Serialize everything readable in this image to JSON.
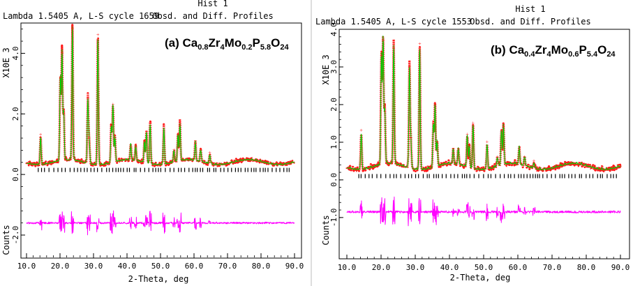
{
  "chart_data": [
    {
      "type": "line",
      "panel_id": "a",
      "header_left": "Lambda 1.5405 A, L-S cycle 1659",
      "header_right_line1": "Hist  1",
      "header_right_line2": "Obsd. and Diff. Profiles",
      "label": {
        "prefix": "(a) ",
        "parts": [
          [
            "Ca",
            ""
          ],
          [
            "0.8",
            "sub"
          ],
          [
            "Zr",
            ""
          ],
          [
            "4",
            "sub"
          ],
          [
            "Mo",
            ""
          ],
          [
            "0.2",
            "sub"
          ],
          [
            "P",
            ""
          ],
          [
            "5.8",
            "sub"
          ],
          [
            "O",
            ""
          ],
          [
            "24",
            "sub"
          ]
        ]
      },
      "ylabel_top": "X10E  3",
      "ylabel_bottom": "Counts",
      "xlabel": "2-Theta, deg",
      "xlim": [
        10,
        90
      ],
      "ylim": [
        -2.3,
        5.0
      ],
      "x_ticks": [
        10.0,
        20.0,
        30.0,
        40.0,
        50.0,
        60.0,
        70.0,
        80.0,
        90.0
      ],
      "x_tick_labels": [
        "10.0",
        "20.0",
        "30.0",
        "40.0",
        "50.0",
        "60.0",
        "70.0",
        "80.0",
        "90.0"
      ],
      "y_ticks": [
        -2.0,
        0.0,
        2.0,
        4.0
      ],
      "y_tick_labels": [
        "-2.0",
        "0.0",
        "2.0",
        "4.0"
      ],
      "background_level": 0.4,
      "tick_marks_y": 0.15,
      "difference_offset": -1.6,
      "peaks": [
        [
          14.2,
          1.3
        ],
        [
          20.1,
          3.2
        ],
        [
          20.6,
          4.0
        ],
        [
          21.1,
          2.0
        ],
        [
          23.7,
          4.8
        ],
        [
          28.3,
          2.5
        ],
        [
          28.7,
          1.2
        ],
        [
          31.3,
          4.6
        ],
        [
          35.3,
          1.6
        ],
        [
          35.8,
          2.3
        ],
        [
          36.4,
          1.2
        ],
        [
          41.1,
          0.9
        ],
        [
          42.6,
          0.9
        ],
        [
          45.2,
          1.1
        ],
        [
          45.8,
          1.4
        ],
        [
          46.9,
          1.7
        ],
        [
          51.0,
          1.6
        ],
        [
          54.0,
          0.8
        ],
        [
          55.2,
          1.3
        ],
        [
          55.8,
          1.6
        ],
        [
          60.4,
          1.0
        ],
        [
          62.0,
          0.8
        ],
        [
          64.7,
          0.7
        ]
      ],
      "colors": {
        "observed": "#ff1a1a",
        "calculated": "#00d000",
        "difference": "#ff00ff",
        "ticks": "#000000"
      }
    },
    {
      "type": "line",
      "panel_id": "b",
      "header_left": "Lambda 1.5405 A, L-S cycle 1553",
      "header_right_line1": "Hist  1",
      "header_right_line2": "Obsd. and Diff. Profiles",
      "label": {
        "prefix": "(b) ",
        "parts": [
          [
            "Ca",
            ""
          ],
          [
            "0.4",
            "sub"
          ],
          [
            "Zr",
            ""
          ],
          [
            "4",
            "sub"
          ],
          [
            "Mo",
            ""
          ],
          [
            "0.6",
            "sub"
          ],
          [
            "P",
            ""
          ],
          [
            "5.4",
            "sub"
          ],
          [
            "O",
            ""
          ],
          [
            "24",
            "sub"
          ]
        ]
      },
      "ylabel_top": "X10E  3",
      "ylabel_bottom": "Counts",
      "xlabel": "2-Theta, deg",
      "xlim": [
        10,
        90
      ],
      "ylim": [
        -1.8,
        4.0
      ],
      "x_ticks": [
        10.0,
        20.0,
        30.0,
        40.0,
        50.0,
        60.0,
        70.0,
        80.0,
        90.0
      ],
      "x_tick_labels": [
        "10.0",
        "20.0",
        "30.0",
        "40.0",
        "50.0",
        "60.0",
        "70.0",
        "80.0",
        "90.0"
      ],
      "y_ticks": [
        -1.0,
        0.0,
        1.0,
        2.0,
        3.0,
        4.0
      ],
      "y_tick_labels": [
        "-1.0",
        "0.0",
        "1.0",
        "2.0",
        "3.0",
        "4.0"
      ],
      "background_level": 0.35,
      "tick_marks_y": 0.1,
      "difference_offset": -0.85,
      "peaks": [
        [
          14.2,
          1.3
        ],
        [
          20.1,
          3.3
        ],
        [
          20.6,
          3.7
        ],
        [
          21.1,
          1.8
        ],
        [
          23.7,
          3.5
        ],
        [
          28.3,
          3.0
        ],
        [
          28.7,
          1.1
        ],
        [
          31.3,
          3.6
        ],
        [
          35.3,
          1.5
        ],
        [
          35.8,
          2.0
        ],
        [
          36.4,
          1.0
        ],
        [
          41.1,
          0.7
        ],
        [
          42.6,
          0.8
        ],
        [
          45.2,
          1.2
        ],
        [
          45.8,
          0.9
        ],
        [
          46.9,
          1.5
        ],
        [
          51.0,
          1.0
        ],
        [
          54.0,
          0.6
        ],
        [
          55.2,
          1.3
        ],
        [
          55.8,
          1.4
        ],
        [
          60.4,
          0.8
        ],
        [
          62.0,
          0.6
        ],
        [
          64.7,
          0.5
        ]
      ],
      "colors": {
        "observed": "#ff1a1a",
        "calculated": "#00d000",
        "difference": "#ff00ff",
        "ticks": "#000000"
      }
    }
  ]
}
